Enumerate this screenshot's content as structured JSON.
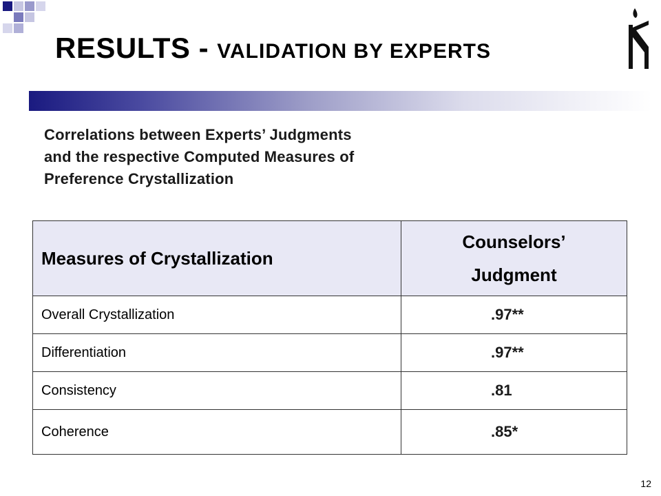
{
  "slide": {
    "title_main": "RESULTS - ",
    "title_sub": "VALIDATION BY EXPERTS",
    "subtitle_lines": [
      "Correlations between Experts’ Judgments",
      "and the respective Computed Measures of",
      "Preference Crystallization"
    ],
    "page_number": "12"
  },
  "table": {
    "header": {
      "col1": "Measures of Crystallization",
      "col2_line1": "Counselors’",
      "col2_line2": "Judgment"
    },
    "rows": [
      {
        "measure": "Overall Crystallization",
        "value": ".97**"
      },
      {
        "measure": "Differentiation",
        "value": ".97**"
      },
      {
        "measure": "Consistency",
        "value": ".81"
      },
      {
        "measure": "Coherence",
        "value": ".85*"
      }
    ]
  },
  "colors": {
    "gradient_start": "#1a1a80",
    "header_fill": "#e8e8f5",
    "square_dark": "#1a1a80",
    "square_light": "#b8b8dc"
  }
}
